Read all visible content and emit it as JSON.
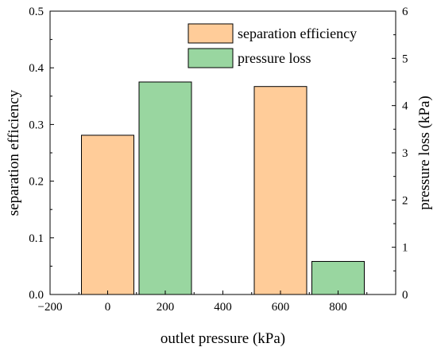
{
  "chart_data": {
    "type": "bar",
    "x_categories": [
      0,
      200,
      600,
      800
    ],
    "xlabel": "outlet pressure (kPa)",
    "xlim": [
      -200,
      1000
    ],
    "xticks": [
      "−200",
      "0",
      "200",
      "400",
      "600",
      "800"
    ],
    "ylabel_left": "separation efficiency",
    "ylim_left": [
      0.0,
      0.5
    ],
    "yticks_left": [
      "0.0",
      "0.1",
      "0.2",
      "0.3",
      "0.4",
      "0.5"
    ],
    "ylabel_right": "pressure loss (kPa)",
    "ylim_right": [
      0,
      6
    ],
    "yticks_right": [
      "0",
      "1",
      "2",
      "3",
      "4",
      "5",
      "6"
    ],
    "legend_position": "top-right",
    "series": [
      {
        "name": "separation efficiency",
        "axis": "left",
        "color": "#FFCC99",
        "points": [
          {
            "x": 0,
            "value": 0.281
          },
          {
            "x": 600,
            "value": 0.367
          }
        ]
      },
      {
        "name": "pressure loss",
        "axis": "right",
        "color": "#99D6A0",
        "points": [
          {
            "x": 200,
            "value": 4.5
          },
          {
            "x": 800,
            "value": 0.7
          }
        ]
      }
    ]
  }
}
